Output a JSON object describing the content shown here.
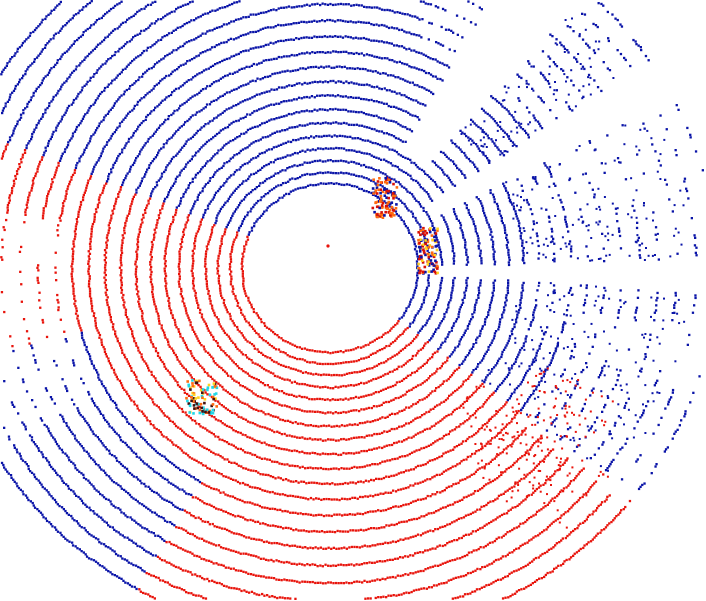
{
  "scene": {
    "type": "lidar-point-cloud-top-view",
    "background_color": "#ffffff",
    "colors": {
      "region_a": "#0a14a8",
      "region_b": "#e8140c",
      "object_orange": "#ff6a10",
      "object_red": "#d81008",
      "object_yellow": "#ffd21e",
      "object_cyan": "#20d8e8",
      "object_dark": "#401010"
    },
    "segmentation": {
      "region_a_label": "",
      "region_b_label": ""
    },
    "objects": [
      {
        "name": "object-upper-right",
        "color_key": "object_orange"
      },
      {
        "name": "object-right",
        "color_key": "object_red"
      },
      {
        "name": "object-lower-left",
        "color_key": "object_cyan"
      }
    ]
  }
}
